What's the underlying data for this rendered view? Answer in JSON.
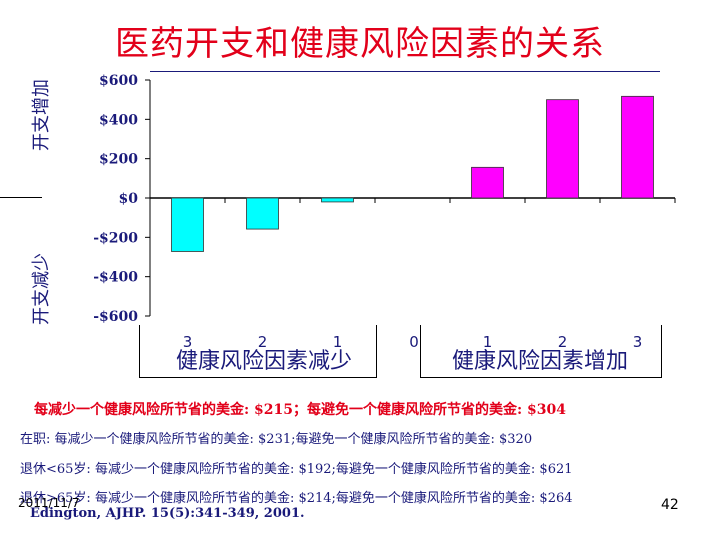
{
  "title": "医药开支和健康风险因素的关系",
  "y_label_top": "开支增加",
  "y_label_bottom": "开支减少",
  "group_label_left": "健康风险因素减少",
  "group_label_right": "健康风险因素增加",
  "summary": "每减少一个健康风险所节省的美金: $215；每避免一个健康风险所节省的美金: $304",
  "notes": [
    "在职: 每减少一个健康风险所节省的美金: $231;每避免一个健康风险所节省的美金: $320",
    "退休<65岁: 每减少一个健康风险所节省的美金: $192;每避免一个健康风险所节省的美金: $621",
    "退休>65岁: 每减少一个健康风险所节省的美金: $214;每避免一个健康风险所节省的美金: $264"
  ],
  "source": "Edington, AJHP. 15(5):341-349, 2001.",
  "date": "2011/11/7",
  "page_number": "42",
  "colors": {
    "decrease_bar": "#00ffff",
    "increase_bar": "#ff00ff",
    "title": "#e2001a",
    "text": "#1a1a7a"
  },
  "chart_data": {
    "type": "bar",
    "categories": [
      "3",
      "2",
      "1",
      "0",
      "1",
      "2",
      "3"
    ],
    "values": [
      -272,
      -158,
      -20,
      0,
      156,
      500,
      517
    ],
    "ylim": [
      -600,
      600
    ],
    "yticks": [
      600,
      400,
      200,
      0,
      -200,
      -400,
      -600
    ],
    "ytick_labels": [
      "$600",
      "$400",
      "$200",
      "$0",
      "-$200",
      "-$400",
      "-$600"
    ],
    "grid": false
  }
}
